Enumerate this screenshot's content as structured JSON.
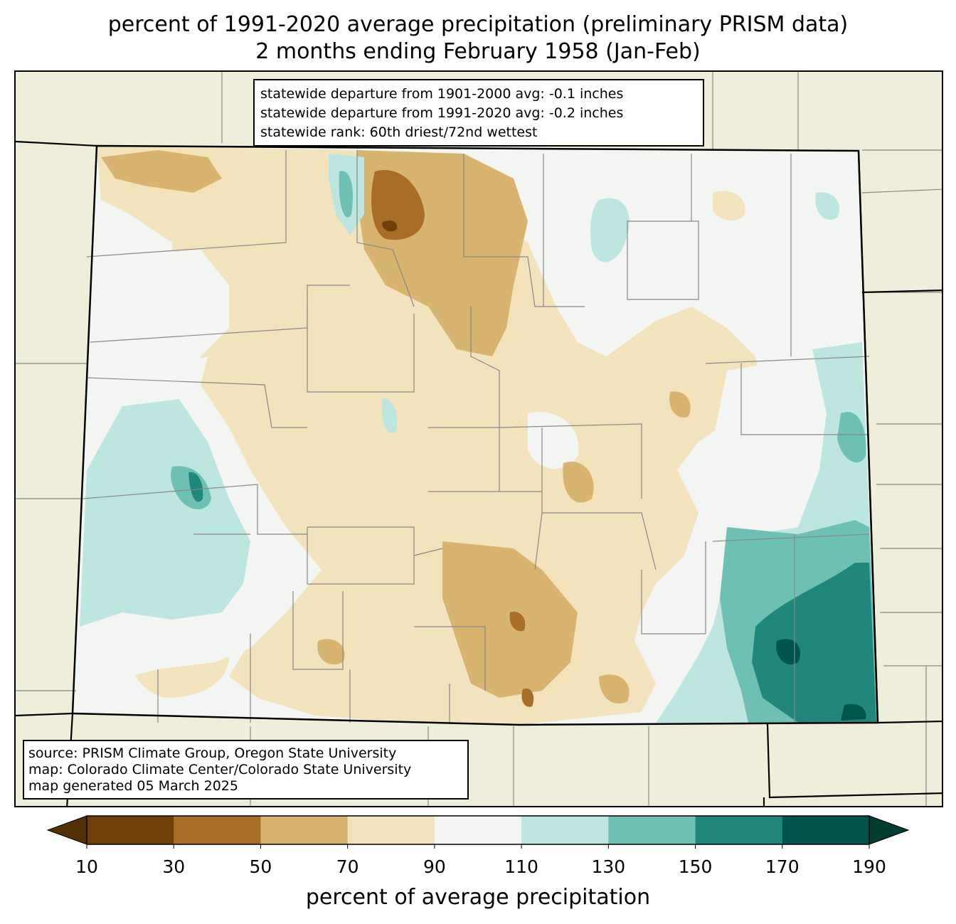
{
  "title": {
    "line1": "percent of 1991-2020 average precipitation (preliminary PRISM data)",
    "line2": "2 months ending February 1958 (Jan-Feb)"
  },
  "stats": {
    "line1": "statewide departure from 1901-2000 avg: -0.1 inches",
    "line2": "statewide departure from 1991-2020 avg: -0.2 inches",
    "line3": "statewide rank: 60th driest/72nd wettest"
  },
  "source": {
    "line1": "source: PRISM Climate Group, Oregon State University",
    "line2": "map: Colorado Climate Center/Colorado State University",
    "line3": "map generated 05 March 2025"
  },
  "colorbar": {
    "label": "percent of average precipitation",
    "ticks": [
      "10",
      "30",
      "50",
      "70",
      "90",
      "110",
      "130",
      "150",
      "170",
      "190"
    ],
    "bins": [
      {
        "range": "<10",
        "color": "#543005"
      },
      {
        "range": "10-30",
        "color": "#6f3f0a"
      },
      {
        "range": "30-50",
        "color": "#a86d26"
      },
      {
        "range": "50-70",
        "color": "#d8b471"
      },
      {
        "range": "70-90",
        "color": "#f3e3bc"
      },
      {
        "range": "90-110",
        "color": "#f3f5f3"
      },
      {
        "range": "110-130",
        "color": "#bce6df"
      },
      {
        "range": "130-150",
        "color": "#6fc0b4"
      },
      {
        "range": "150-170",
        "color": "#21877c"
      },
      {
        "range": "170-190",
        "color": "#01544b"
      },
      {
        "range": ">190",
        "color": "#003c30"
      }
    ]
  },
  "colors": {
    "background_land": "#efeedb",
    "border": "#000000",
    "county_lines": "#888888"
  }
}
